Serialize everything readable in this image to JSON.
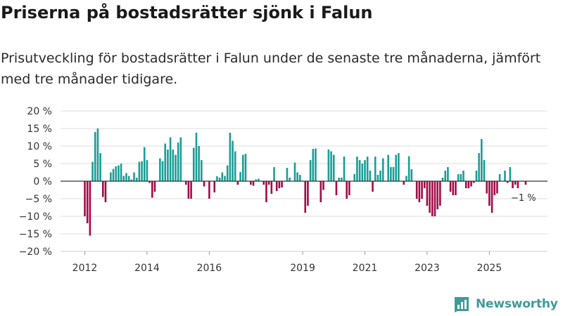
{
  "header": {
    "title": "Priserna på bostadsrätter sjönk i Falun",
    "subtitle": "Prisutveckling för bostadsrätter i Falun under de senaste tre månaderna, jämfört med tre månader tidigare."
  },
  "brand": {
    "name": "Newsworthy",
    "color": "#3e9b98"
  },
  "colors": {
    "positive": "#1a9e96",
    "negative": "#a30b46",
    "zero_line": "#333333",
    "grid": "#dddddd"
  },
  "chart_data": {
    "type": "bar",
    "title": "Priserna på bostadsrätter sjönk i Falun",
    "xlabel": "",
    "ylabel": "",
    "ylim": [
      -20,
      20
    ],
    "y_ticks": [
      20,
      15,
      10,
      5,
      0,
      -5,
      -10,
      -15,
      -20
    ],
    "y_tick_labels": [
      "20 %",
      "15 %",
      "10 %",
      "5 %",
      "0 %",
      "−5 %",
      "−10 %",
      "−15 %",
      "−20 %"
    ],
    "x_ticks": [
      2012,
      2014,
      2016,
      2019,
      2021,
      2023,
      2025
    ],
    "x_tick_labels": [
      "2012",
      "2014",
      "2016",
      "2019",
      "2021",
      "2023",
      "2025"
    ],
    "start": {
      "year": 2012,
      "month": 1
    },
    "annotation": {
      "text": "−1 %"
    },
    "values": [
      -10,
      -12,
      -15.5,
      5.5,
      14,
      15,
      8,
      -4.5,
      -6,
      0,
      2.5,
      3.5,
      4.2,
      4.5,
      5,
      1.5,
      2.3,
      1.5,
      0.5,
      2.5,
      1,
      5.5,
      5.7,
      9.7,
      6,
      -0.5,
      -4.7,
      -3,
      0,
      6.5,
      5.7,
      10.7,
      9,
      12.5,
      9,
      7.5,
      11,
      12.5,
      0,
      -1,
      -5,
      -5,
      9.5,
      13.8,
      10,
      6,
      -1.5,
      0,
      -5,
      0,
      -3.2,
      1.4,
      1,
      2.5,
      1.5,
      4.5,
      13.8,
      11.5,
      8.5,
      -1,
      2.6,
      7.5,
      7.8,
      0,
      -1,
      -1.3,
      0.5,
      0.7,
      0,
      -1,
      -6,
      -1,
      -3.6,
      4,
      -2.8,
      -2,
      -1.8,
      0,
      3.8,
      1,
      0,
      5.3,
      2.5,
      1.8,
      0,
      -9,
      -7,
      6,
      9.2,
      9.3,
      0,
      -6,
      -2.5,
      0,
      9,
      8.5,
      7.5,
      -4,
      1,
      1,
      7,
      -5,
      -4,
      0,
      2,
      7,
      6,
      5,
      6,
      7,
      3,
      -3,
      7,
      1.8,
      3,
      6.5,
      0,
      7.5,
      4,
      4,
      7.5,
      8,
      0,
      -1,
      1.5,
      7.1,
      3.4,
      0,
      -5,
      -6,
      -5,
      -2,
      -7,
      -9,
      -10,
      -10,
      -8,
      -7,
      1,
      3,
      4,
      -3,
      -4,
      -4,
      2,
      2,
      3,
      -2,
      -2,
      -1.5,
      -0.5,
      3,
      8,
      12,
      6,
      -3.5,
      -7,
      -9,
      -4,
      -3.5,
      2,
      0,
      3,
      -0.5,
      4,
      -2,
      -1,
      -2,
      0,
      0,
      -1
    ]
  }
}
